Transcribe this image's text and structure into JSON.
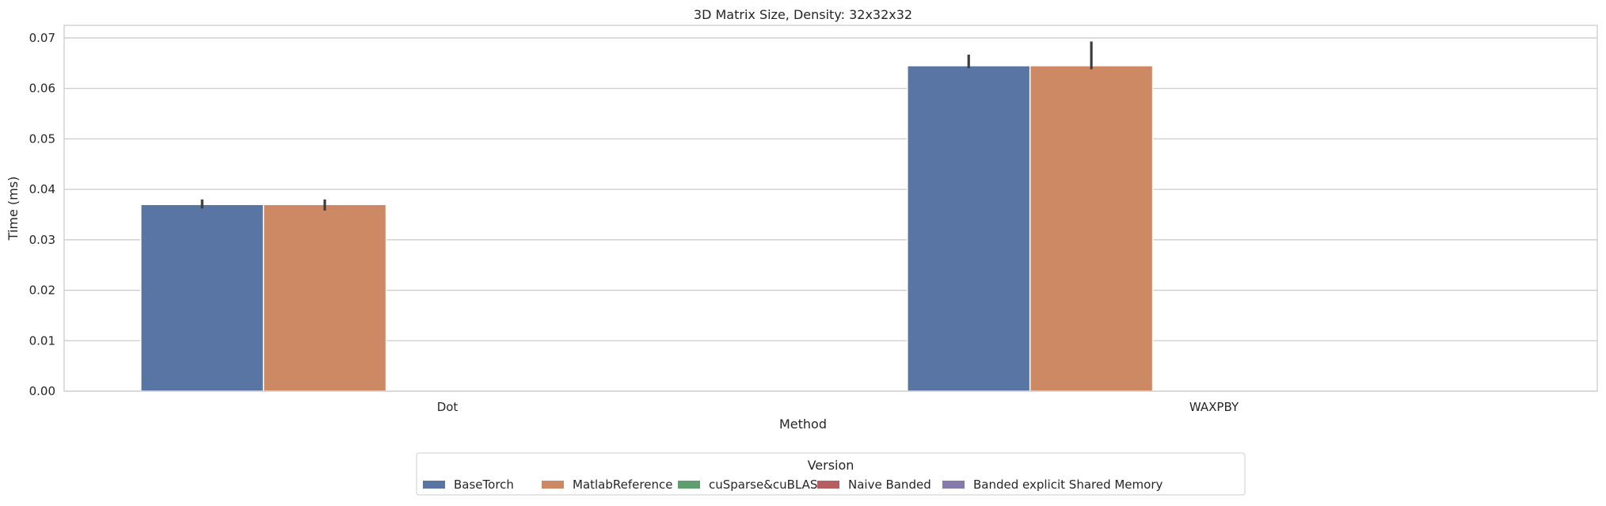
{
  "chart_data": {
    "type": "bar",
    "title": "3D Matrix Size, Density: 32x32x32",
    "xlabel": "Method",
    "ylabel": "Time (ms)",
    "categories": [
      "Dot",
      "WAXPBY"
    ],
    "ylim": [
      0,
      0.0725
    ],
    "yticks": [
      0.0,
      0.01,
      0.02,
      0.03,
      0.04,
      0.05,
      0.06,
      0.07
    ],
    "ytick_labels": [
      "0.00",
      "0.01",
      "0.02",
      "0.03",
      "0.04",
      "0.05",
      "0.06",
      "0.07"
    ],
    "grid": "horizontal",
    "legend": {
      "title": "Version",
      "position": "bottom-center"
    },
    "series": [
      {
        "name": "BaseTorch",
        "color": "#5975a4",
        "values": [
          0.037,
          0.0645
        ],
        "err_low": [
          0.0362,
          0.064
        ],
        "err_high": [
          0.038,
          0.0667
        ]
      },
      {
        "name": "MatlabReference",
        "color": "#cc8963",
        "values": [
          0.037,
          0.0645
        ],
        "err_low": [
          0.0358,
          0.0638
        ],
        "err_high": [
          0.038,
          0.0693
        ]
      },
      {
        "name": "cuSparse&cuBLAS",
        "color": "#5f9e6e",
        "values": [
          null,
          null
        ]
      },
      {
        "name": "Naive Banded",
        "color": "#b55d60",
        "values": [
          null,
          null
        ]
      },
      {
        "name": "Banded explicit Shared Memory",
        "color": "#857aab",
        "values": [
          null,
          null
        ]
      }
    ]
  }
}
